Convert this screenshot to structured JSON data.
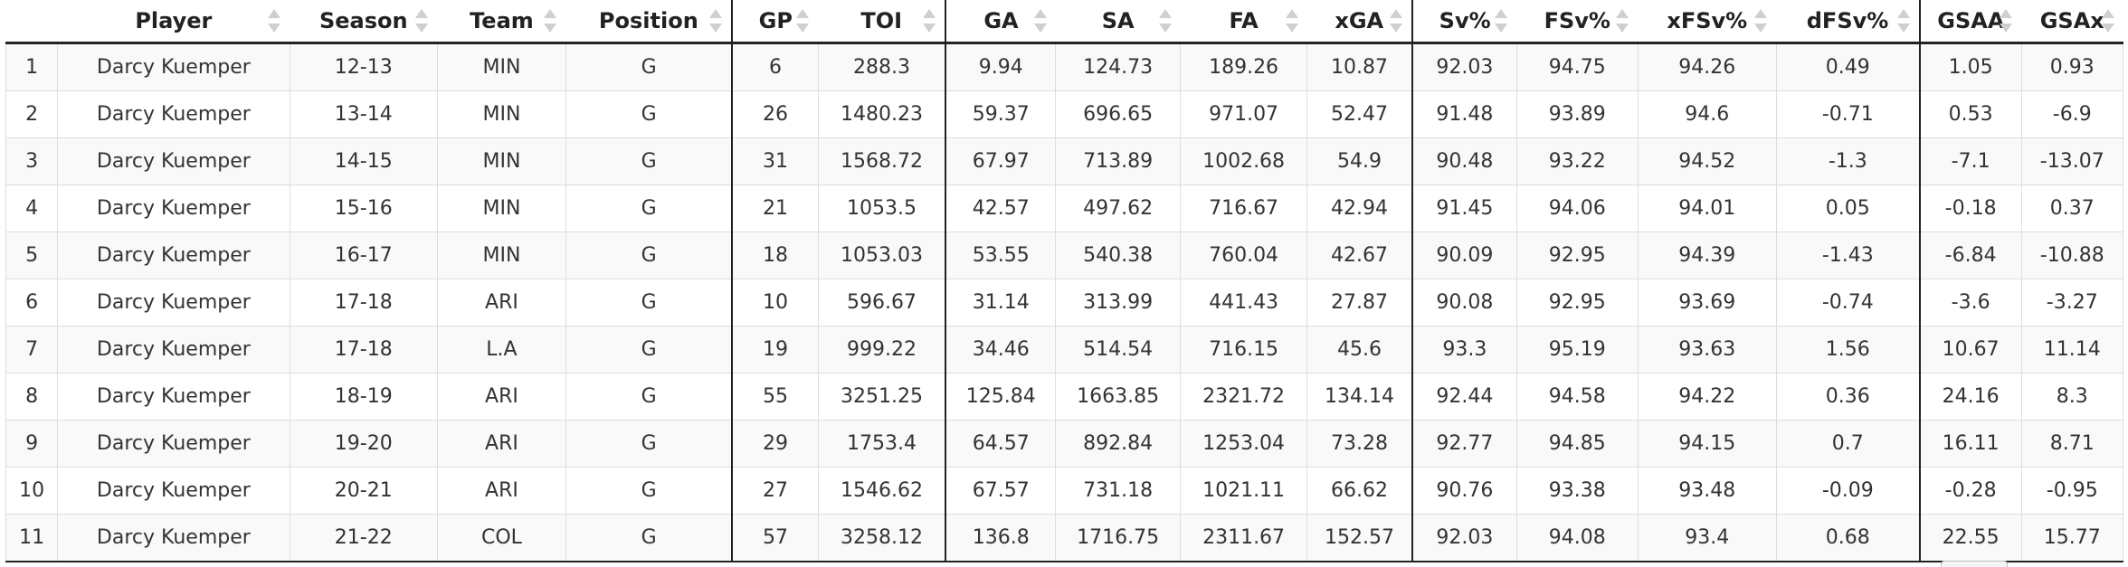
{
  "table": {
    "columns": [
      {
        "key": "idx",
        "label": ""
      },
      {
        "key": "player",
        "label": "Player"
      },
      {
        "key": "season",
        "label": "Season"
      },
      {
        "key": "team",
        "label": "Team"
      },
      {
        "key": "position",
        "label": "Position"
      },
      {
        "key": "gp",
        "label": "GP"
      },
      {
        "key": "toi",
        "label": "TOI"
      },
      {
        "key": "ga",
        "label": "GA"
      },
      {
        "key": "sa",
        "label": "SA"
      },
      {
        "key": "fa",
        "label": "FA"
      },
      {
        "key": "xga",
        "label": "xGA"
      },
      {
        "key": "sv",
        "label": "Sv%"
      },
      {
        "key": "fsv",
        "label": "FSv%"
      },
      {
        "key": "xfsv",
        "label": "xFSv%"
      },
      {
        "key": "dfsv",
        "label": "dFSv%"
      },
      {
        "key": "gsaa",
        "label": "GSAA"
      },
      {
        "key": "gsax",
        "label": "GSAx"
      }
    ],
    "rows": [
      [
        "1",
        "Darcy Kuemper",
        "12-13",
        "MIN",
        "G",
        "6",
        "288.3",
        "9.94",
        "124.73",
        "189.26",
        "10.87",
        "92.03",
        "94.75",
        "94.26",
        "0.49",
        "1.05",
        "0.93"
      ],
      [
        "2",
        "Darcy Kuemper",
        "13-14",
        "MIN",
        "G",
        "26",
        "1480.23",
        "59.37",
        "696.65",
        "971.07",
        "52.47",
        "91.48",
        "93.89",
        "94.6",
        "-0.71",
        "0.53",
        "-6.9"
      ],
      [
        "3",
        "Darcy Kuemper",
        "14-15",
        "MIN",
        "G",
        "31",
        "1568.72",
        "67.97",
        "713.89",
        "1002.68",
        "54.9",
        "90.48",
        "93.22",
        "94.52",
        "-1.3",
        "-7.1",
        "-13.07"
      ],
      [
        "4",
        "Darcy Kuemper",
        "15-16",
        "MIN",
        "G",
        "21",
        "1053.5",
        "42.57",
        "497.62",
        "716.67",
        "42.94",
        "91.45",
        "94.06",
        "94.01",
        "0.05",
        "-0.18",
        "0.37"
      ],
      [
        "5",
        "Darcy Kuemper",
        "16-17",
        "MIN",
        "G",
        "18",
        "1053.03",
        "53.55",
        "540.38",
        "760.04",
        "42.67",
        "90.09",
        "92.95",
        "94.39",
        "-1.43",
        "-6.84",
        "-10.88"
      ],
      [
        "6",
        "Darcy Kuemper",
        "17-18",
        "ARI",
        "G",
        "10",
        "596.67",
        "31.14",
        "313.99",
        "441.43",
        "27.87",
        "90.08",
        "92.95",
        "93.69",
        "-0.74",
        "-3.6",
        "-3.27"
      ],
      [
        "7",
        "Darcy Kuemper",
        "17-18",
        "L.A",
        "G",
        "19",
        "999.22",
        "34.46",
        "514.54",
        "716.15",
        "45.6",
        "93.3",
        "95.19",
        "93.63",
        "1.56",
        "10.67",
        "11.14"
      ],
      [
        "8",
        "Darcy Kuemper",
        "18-19",
        "ARI",
        "G",
        "55",
        "3251.25",
        "125.84",
        "1663.85",
        "2321.72",
        "134.14",
        "92.44",
        "94.58",
        "94.22",
        "0.36",
        "24.16",
        "8.3"
      ],
      [
        "9",
        "Darcy Kuemper",
        "19-20",
        "ARI",
        "G",
        "29",
        "1753.4",
        "64.57",
        "892.84",
        "1253.04",
        "73.28",
        "92.77",
        "94.85",
        "94.15",
        "0.7",
        "16.11",
        "8.71"
      ],
      [
        "10",
        "Darcy Kuemper",
        "20-21",
        "ARI",
        "G",
        "27",
        "1546.62",
        "67.57",
        "731.18",
        "1021.11",
        "66.62",
        "90.76",
        "93.38",
        "93.48",
        "-0.09",
        "-0.28",
        "-0.95"
      ],
      [
        "11",
        "Darcy Kuemper",
        "21-22",
        "COL",
        "G",
        "57",
        "3258.12",
        "136.8",
        "1716.75",
        "2311.67",
        "152.57",
        "92.03",
        "94.08",
        "93.4",
        "0.68",
        "22.55",
        "15.77"
      ]
    ]
  }
}
